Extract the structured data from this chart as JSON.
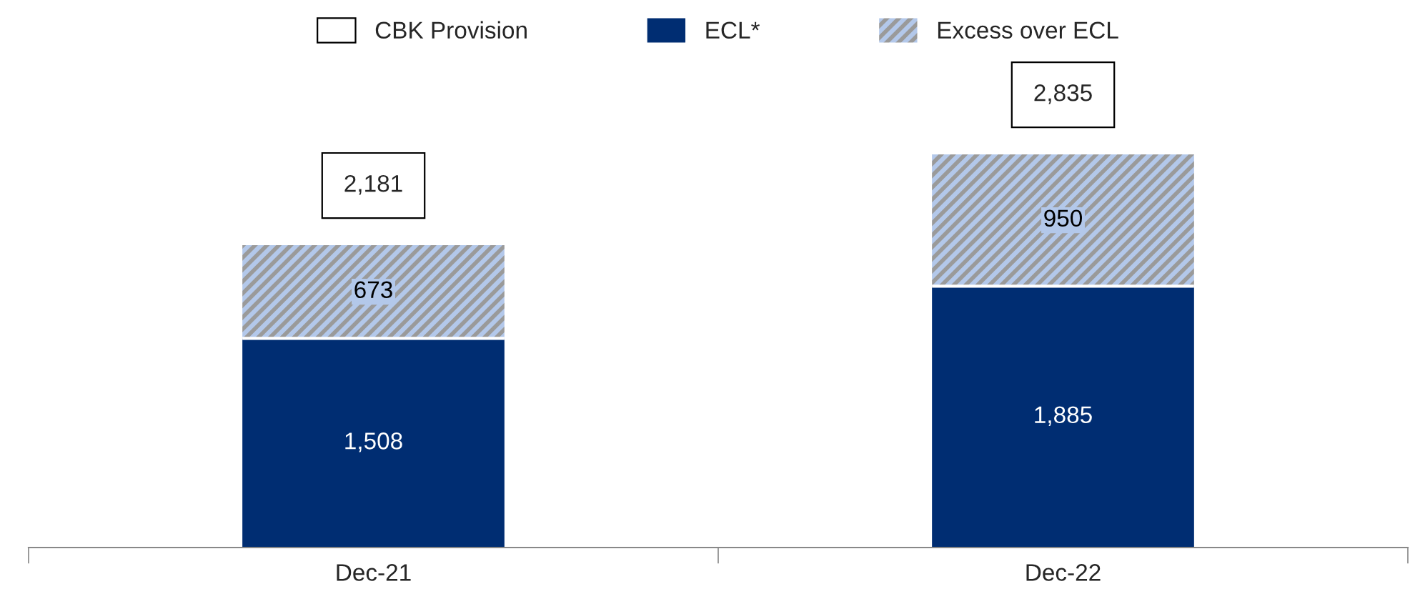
{
  "chart_data": {
    "type": "bar",
    "stacked": true,
    "categories": [
      "Dec-21",
      "Dec-22"
    ],
    "series": [
      {
        "name": "ECL*",
        "color": "#002d72",
        "values": [
          1508,
          1885
        ],
        "value_labels": [
          "1,508",
          "1,885"
        ]
      },
      {
        "name": "Excess over ECL",
        "color": "#b3c8ea",
        "values": [
          673,
          950
        ],
        "value_labels": [
          "673",
          "950"
        ]
      }
    ],
    "totals": [
      "2,181",
      "2,835"
    ],
    "annotations": [
      "CBK Provision"
    ],
    "legend": "top",
    "grid": false,
    "tick_labels": "x"
  }
}
